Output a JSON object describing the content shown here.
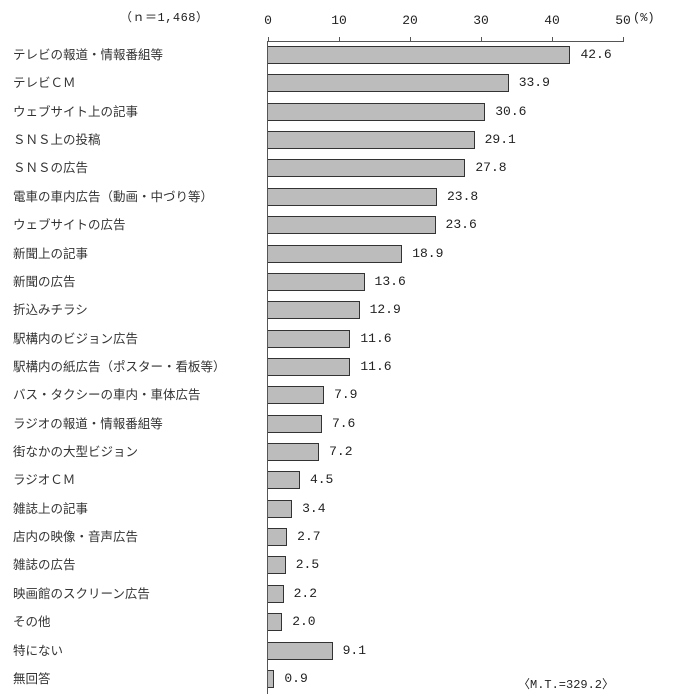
{
  "chart_data": {
    "type": "bar",
    "orientation": "horizontal",
    "title": "",
    "sample_size_label": "（ｎ＝1,468）",
    "xlabel": "(%)",
    "ylabel": "",
    "xlim": [
      0,
      50
    ],
    "x_ticks": [
      "0",
      "10",
      "20",
      "30",
      "40",
      "50"
    ],
    "grid": false,
    "legend": null,
    "categories": [
      "テレビの報道・情報番組等",
      "テレビＣＭ",
      "ウェブサイト上の記事",
      "ＳＮＳ上の投稿",
      "ＳＮＳの広告",
      "電車の車内広告（動画・中づり等）",
      "ウェブサイトの広告",
      "新聞上の記事",
      "新聞の広告",
      "折込みチラシ",
      "駅構内のビジョン広告",
      "駅構内の紙広告（ポスター・看板等）",
      "バス・タクシーの車内・車体広告",
      "ラジオの報道・情報番組等",
      "街なかの大型ビジョン",
      "ラジオＣＭ",
      "雑誌上の記事",
      "店内の映像・音声広告",
      "雑誌の広告",
      "映画館のスクリーン広告",
      "その他",
      "特にない",
      "無回答"
    ],
    "values": [
      42.6,
      33.9,
      30.6,
      29.1,
      27.8,
      23.8,
      23.6,
      18.9,
      13.6,
      12.9,
      11.6,
      11.6,
      7.9,
      7.6,
      7.2,
      4.5,
      3.4,
      2.7,
      2.5,
      2.2,
      2.0,
      9.1,
      0.9
    ],
    "value_labels": [
      "42.6",
      "33.9",
      "30.6",
      "29.1",
      "27.8",
      "23.8",
      "23.6",
      "18.9",
      "13.6",
      "12.9",
      "11.6",
      "11.6",
      "7.9",
      "7.6",
      "7.2",
      "4.5",
      "3.4",
      "2.7",
      "2.5",
      "2.2",
      "2.0",
      "9.1",
      "0.9"
    ],
    "annotations": [
      "<M.T.=329.2>"
    ],
    "bar_fill": "dotted gray",
    "bar_border_color": "#333333"
  },
  "header": {
    "n_label": "（ｎ＝1,468）",
    "unit_label": "(%)"
  },
  "footer": {
    "mt_label": "〈M.T.=329.2〉"
  }
}
